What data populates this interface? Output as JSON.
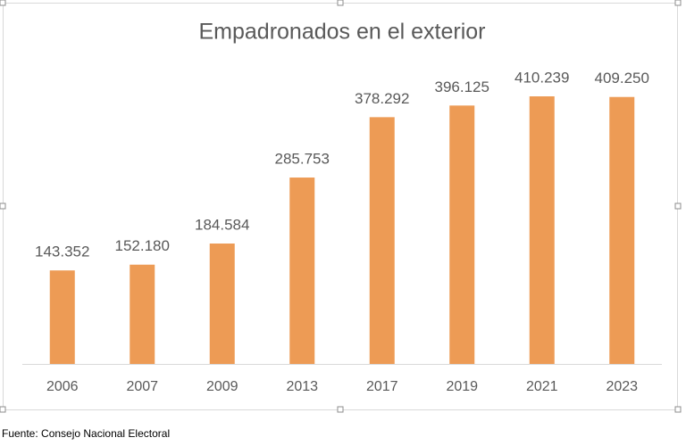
{
  "chart_data": {
    "type": "bar",
    "title": "Empadronados en el exterior",
    "categories": [
      "2006",
      "2007",
      "2009",
      "2013",
      "2017",
      "2019",
      "2021",
      "2023"
    ],
    "values": [
      143352,
      152180,
      184584,
      285753,
      378292,
      396125,
      410239,
      409250
    ],
    "value_labels": [
      "143.352",
      "152.180",
      "184.584",
      "285.753",
      "378.292",
      "396.125",
      "410.239",
      "409.250"
    ],
    "color": "#ed9b55",
    "source": "Fuente: Consejo Nacional Electoral"
  }
}
